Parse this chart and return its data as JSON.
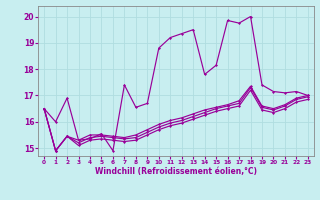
{
  "xlabel": "Windchill (Refroidissement éolien,°C)",
  "background_color": "#c8eef0",
  "grid_color": "#b0dde0",
  "line_color": "#990099",
  "spine_color": "#888888",
  "xlim": [
    -0.5,
    23.5
  ],
  "ylim": [
    14.7,
    20.4
  ],
  "yticks": [
    15,
    16,
    17,
    18,
    19,
    20
  ],
  "xticks": [
    0,
    1,
    2,
    3,
    4,
    5,
    6,
    7,
    8,
    9,
    10,
    11,
    12,
    13,
    14,
    15,
    16,
    17,
    18,
    19,
    20,
    21,
    22,
    23
  ],
  "lines": [
    [
      16.5,
      16.0,
      16.9,
      15.3,
      15.35,
      15.55,
      14.9,
      17.4,
      16.55,
      16.7,
      18.8,
      19.2,
      19.35,
      19.5,
      17.8,
      18.15,
      19.85,
      19.75,
      20.0,
      17.4,
      17.15,
      17.1,
      17.15,
      17.0
    ],
    [
      16.5,
      14.9,
      15.45,
      15.3,
      15.5,
      15.5,
      15.45,
      15.4,
      15.5,
      15.7,
      15.9,
      16.05,
      16.15,
      16.3,
      16.45,
      16.55,
      16.65,
      16.8,
      17.35,
      16.6,
      16.5,
      16.65,
      16.9,
      17.0
    ],
    [
      16.5,
      14.9,
      15.45,
      15.2,
      15.4,
      15.45,
      15.4,
      15.35,
      15.4,
      15.6,
      15.8,
      15.95,
      16.05,
      16.2,
      16.35,
      16.5,
      16.6,
      16.7,
      17.3,
      16.55,
      16.45,
      16.6,
      16.85,
      16.95
    ],
    [
      16.5,
      14.9,
      15.45,
      15.1,
      15.3,
      15.35,
      15.3,
      15.25,
      15.3,
      15.5,
      15.7,
      15.85,
      15.95,
      16.1,
      16.25,
      16.4,
      16.5,
      16.6,
      17.2,
      16.45,
      16.35,
      16.5,
      16.75,
      16.85
    ]
  ],
  "figsize": [
    3.2,
    2.0
  ],
  "dpi": 100
}
